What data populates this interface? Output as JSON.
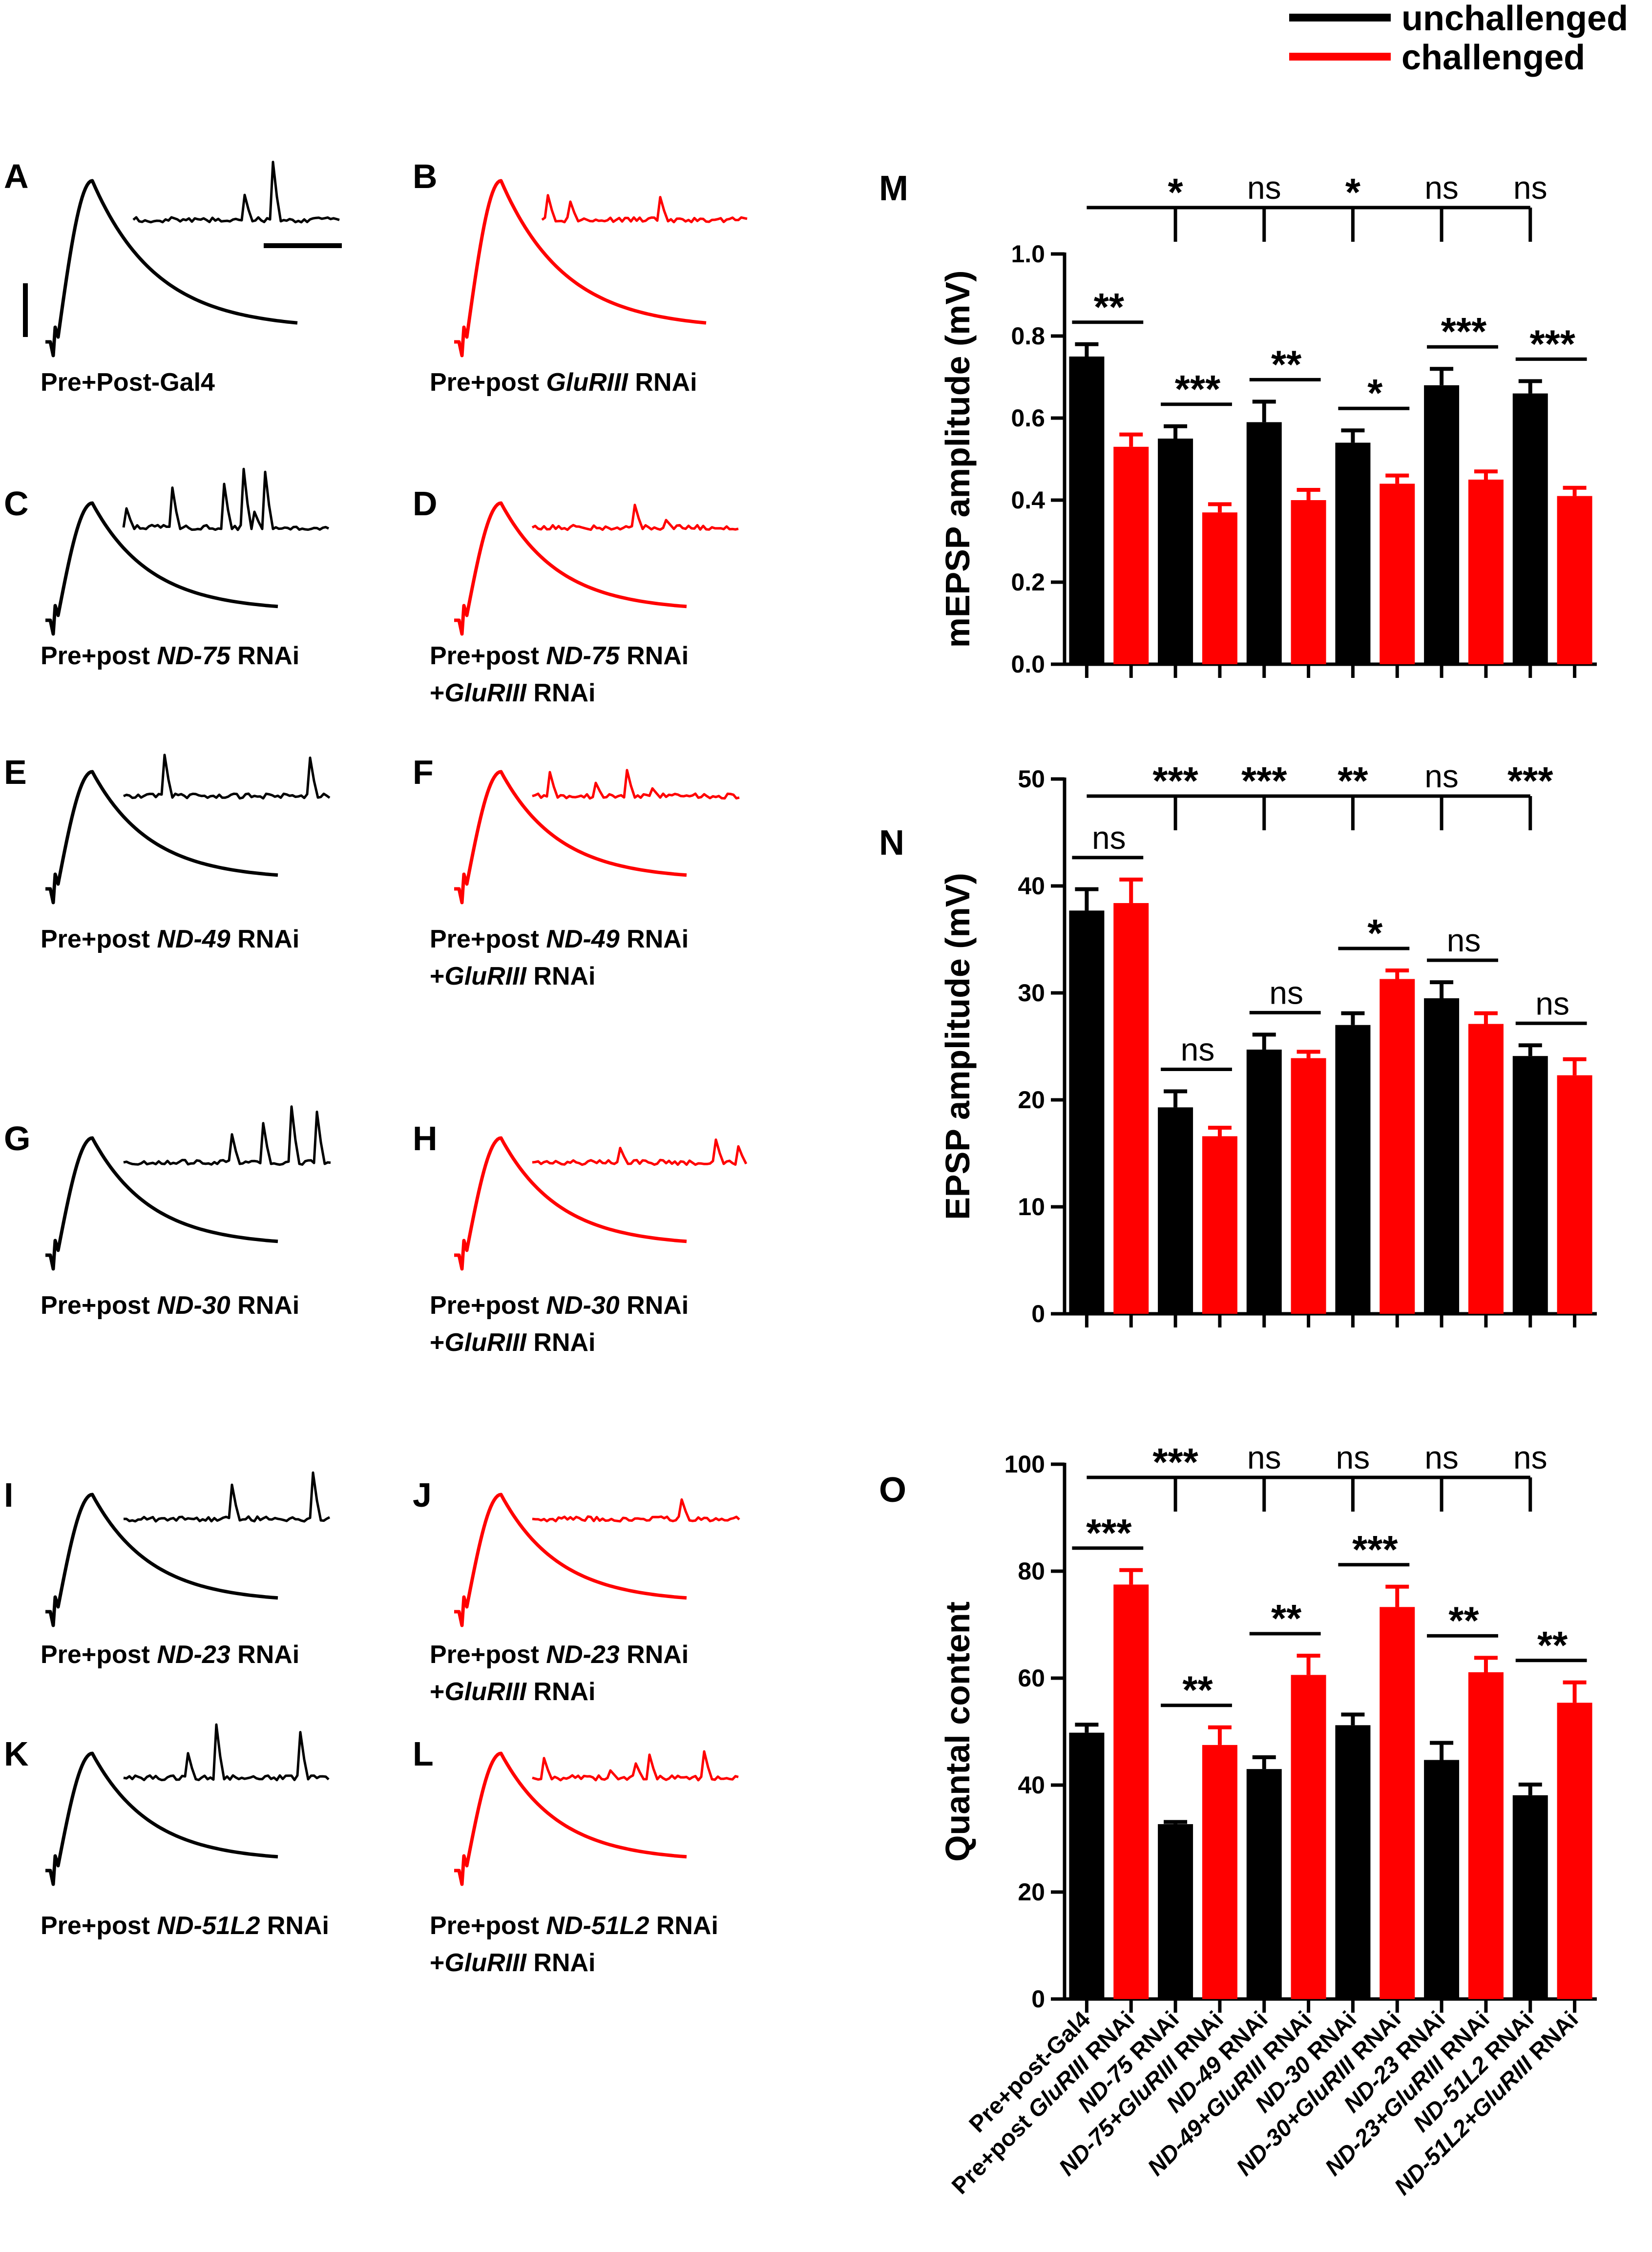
{
  "legend": {
    "entries": [
      {
        "label": "unchallenged",
        "color": "#000000"
      },
      {
        "label": "challenged",
        "color": "#ff0000"
      }
    ]
  },
  "colors": {
    "unchallenged": "#000000",
    "challenged": "#ff0000"
  },
  "trace_panels": [
    {
      "letter": "A",
      "color": "#000000",
      "caption": [
        {
          "t": "Pre+Post-Gal4",
          "i": false
        }
      ]
    },
    {
      "letter": "B",
      "color": "#ff0000",
      "caption": [
        {
          "t": "Pre+post  ",
          "i": false
        },
        {
          "t": "GluRIII",
          "i": true
        },
        {
          "t": " RNAi",
          "i": false
        }
      ]
    },
    {
      "letter": "C",
      "color": "#000000",
      "caption": [
        {
          "t": "Pre+post ",
          "i": false
        },
        {
          "t": "ND-75",
          "i": true
        },
        {
          "t": " RNAi",
          "i": false
        }
      ]
    },
    {
      "letter": "D",
      "color": "#ff0000",
      "caption": [
        {
          "t": "Pre+post ",
          "i": false
        },
        {
          "t": "ND-75",
          "i": true
        },
        {
          "t": " RNAi",
          "i": false
        }
      ],
      "caption2": [
        {
          "t": "+",
          "i": false
        },
        {
          "t": "GluRIII",
          "i": true
        },
        {
          "t": " RNAi",
          "i": false
        }
      ]
    },
    {
      "letter": "E",
      "color": "#000000",
      "caption": [
        {
          "t": "Pre+post ",
          "i": false
        },
        {
          "t": "ND-49",
          "i": true
        },
        {
          "t": " RNAi",
          "i": false
        }
      ]
    },
    {
      "letter": "F",
      "color": "#ff0000",
      "caption": [
        {
          "t": "Pre+post ",
          "i": false
        },
        {
          "t": "ND-49",
          "i": true
        },
        {
          "t": " RNAi",
          "i": false
        }
      ],
      "caption2": [
        {
          "t": "+",
          "i": false
        },
        {
          "t": "GluRIII",
          "i": true
        },
        {
          "t": " RNAi",
          "i": false
        }
      ]
    },
    {
      "letter": "G",
      "color": "#000000",
      "caption": [
        {
          "t": "Pre+post ",
          "i": false
        },
        {
          "t": "ND-30",
          "i": true
        },
        {
          "t": " RNAi",
          "i": false
        }
      ]
    },
    {
      "letter": "H",
      "color": "#ff0000",
      "caption": [
        {
          "t": "Pre+post ",
          "i": false
        },
        {
          "t": "ND-30",
          "i": true
        },
        {
          "t": " RNAi",
          "i": false
        }
      ],
      "caption2": [
        {
          "t": "+",
          "i": false
        },
        {
          "t": "GluRIII",
          "i": true
        },
        {
          "t": " RNAi",
          "i": false
        }
      ]
    },
    {
      "letter": "I",
      "color": "#000000",
      "caption": [
        {
          "t": "Pre+post ",
          "i": false
        },
        {
          "t": "ND-23",
          "i": true
        },
        {
          "t": " RNAi",
          "i": false
        }
      ]
    },
    {
      "letter": "J",
      "color": "#ff0000",
      "caption": [
        {
          "t": "Pre+post ",
          "i": false
        },
        {
          "t": "ND-23",
          "i": true
        },
        {
          "t": " RNAi",
          "i": false
        }
      ],
      "caption2": [
        {
          "t": "+",
          "i": false
        },
        {
          "t": "GluRIII",
          "i": true
        },
        {
          "t": " RNAi",
          "i": false
        }
      ]
    },
    {
      "letter": "K",
      "color": "#000000",
      "caption": [
        {
          "t": "Pre+post ",
          "i": false
        },
        {
          "t": "ND-51L2",
          "i": true
        },
        {
          "t": " RNAi",
          "i": false
        }
      ]
    },
    {
      "letter": "L",
      "color": "#ff0000",
      "caption": [
        {
          "t": "Pre+post ",
          "i": false
        },
        {
          "t": "ND-51L2",
          "i": true
        },
        {
          "t": " RNAi",
          "i": false
        }
      ],
      "caption2": [
        {
          "t": "+",
          "i": false
        },
        {
          "t": "GluRIII",
          "i": true
        },
        {
          "t": " RNAi",
          "i": false
        }
      ]
    }
  ],
  "chart_data": [
    {
      "panel": "M",
      "type": "bar",
      "ylabel": "mEPSP amplitude (mV)",
      "ylim": [
        0,
        1.0
      ],
      "yticks": [
        "0.0",
        "0.2",
        "0.4",
        "0.6",
        "0.8",
        "1.0"
      ],
      "ytick_values": [
        0,
        0.2,
        0.4,
        0.6,
        0.8,
        1.0
      ],
      "series": [
        {
          "name": "unchallenged",
          "values": [
            0.75,
            0.55,
            0.59,
            0.54,
            0.68,
            0.66
          ],
          "errors": [
            0.03,
            0.03,
            0.05,
            0.03,
            0.04,
            0.03
          ]
        },
        {
          "name": "challenged",
          "values": [
            0.53,
            0.37,
            0.4,
            0.44,
            0.45,
            0.41
          ],
          "errors": [
            0.03,
            0.02,
            0.025,
            0.02,
            0.02,
            0.02
          ]
        }
      ],
      "pair_significance": [
        "**",
        "***",
        "**",
        "*",
        "***",
        "***"
      ],
      "group_significance": [
        "*",
        "ns",
        "*",
        "ns",
        "ns"
      ]
    },
    {
      "panel": "N",
      "type": "bar",
      "ylabel": "EPSP amplitude (mV)",
      "ylim": [
        0,
        50
      ],
      "yticks": [
        "0",
        "10",
        "20",
        "30",
        "40",
        "50"
      ],
      "ytick_values": [
        0,
        10,
        20,
        30,
        40,
        50
      ],
      "series": [
        {
          "name": "unchallenged",
          "values": [
            37.7,
            19.3,
            24.7,
            27.0,
            29.5,
            24.1
          ],
          "errors": [
            2.0,
            1.5,
            1.4,
            1.1,
            1.5,
            1.0
          ]
        },
        {
          "name": "challenged",
          "values": [
            38.4,
            16.6,
            23.9,
            31.3,
            27.1,
            22.3
          ],
          "errors": [
            2.2,
            0.8,
            0.6,
            0.8,
            1.0,
            1.5
          ]
        }
      ],
      "pair_significance": [
        "ns",
        "ns",
        "ns",
        "*",
        "ns",
        "ns"
      ],
      "group_significance": [
        "***",
        "***",
        "**",
        "ns",
        "***"
      ]
    },
    {
      "panel": "O",
      "type": "bar",
      "ylabel": "Quantal content",
      "ylim": [
        0,
        100
      ],
      "yticks": [
        "0",
        "20",
        "40",
        "60",
        "80",
        "100"
      ],
      "ytick_values": [
        0,
        20,
        40,
        60,
        80,
        100
      ],
      "series": [
        {
          "name": "unchallenged",
          "values": [
            49.8,
            32.7,
            43.0,
            51.2,
            44.7,
            38.1
          ],
          "errors": [
            1.5,
            0.4,
            2.2,
            2.0,
            3.2,
            2.0
          ]
        },
        {
          "name": "challenged",
          "values": [
            77.5,
            47.5,
            60.6,
            73.3,
            61.1,
            55.4
          ],
          "errors": [
            2.7,
            3.3,
            3.6,
            3.8,
            2.7,
            3.8
          ]
        }
      ],
      "pair_significance": [
        "***",
        "**",
        "**",
        "***",
        "**",
        "**"
      ],
      "group_significance": [
        "***",
        "ns",
        "ns",
        "ns",
        "ns"
      ]
    }
  ],
  "x_categories": [
    [
      {
        "t": "Pre+post-Gal4",
        "i": false
      }
    ],
    [
      {
        "t": "Pre+post ",
        "i": false
      },
      {
        "t": "GluRIII",
        "i": true
      },
      {
        "t": " RNAi",
        "i": false
      }
    ],
    [
      {
        "t": "ND-75",
        "i": true
      },
      {
        "t": " RNAi",
        "i": false
      }
    ],
    [
      {
        "t": "ND-75+GluRIII",
        "i": true
      },
      {
        "t": " RNAi",
        "i": false
      }
    ],
    [
      {
        "t": "ND-49",
        "i": true
      },
      {
        "t": " RNAi",
        "i": false
      }
    ],
    [
      {
        "t": "ND-49+GluRIII",
        "i": true
      },
      {
        "t": " RNAi",
        "i": false
      }
    ],
    [
      {
        "t": "ND-30",
        "i": true
      },
      {
        "t": " RNAi",
        "i": false
      }
    ],
    [
      {
        "t": "ND-30+GluRIII",
        "i": true
      },
      {
        "t": " RNAi",
        "i": false
      }
    ],
    [
      {
        "t": "ND-23",
        "i": true
      },
      {
        "t": " RNAi",
        "i": false
      }
    ],
    [
      {
        "t": "ND-23+GluRIII",
        "i": true
      },
      {
        "t": " RNAi",
        "i": false
      }
    ],
    [
      {
        "t": "ND-51L2",
        "i": true
      },
      {
        "t": " RNAi",
        "i": false
      }
    ],
    [
      {
        "t": "ND-51L2+GluRIII",
        "i": true
      },
      {
        "t": " RNAi",
        "i": false
      }
    ]
  ]
}
